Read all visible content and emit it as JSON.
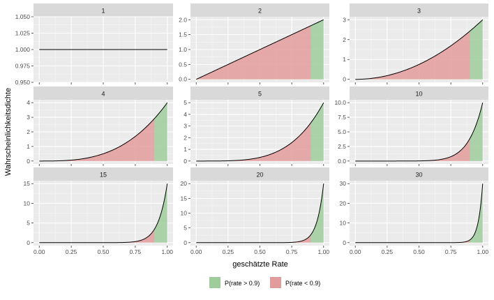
{
  "chart_data": {
    "type": "area",
    "subtype": "faceted-density",
    "layout": {
      "columns": 3,
      "rows": 3,
      "scales": "free_y"
    },
    "xlabel": "geschätzte Rate",
    "ylabel": "Wahrscheinlichkeitsdichte",
    "xlim": [
      0,
      1
    ],
    "x_ticks": [
      "0.00",
      "0.25",
      "0.50",
      "0.75",
      "1.00"
    ],
    "threshold": 0.9,
    "grid": true,
    "legend": {
      "position": "bottom",
      "entries": [
        {
          "label": "P(rate > 0.9)",
          "color": "#9fcc9b"
        },
        {
          "label": "P(rate < 0.9)",
          "color": "#e39c9c"
        }
      ]
    },
    "line_color": "#000000",
    "panel_bg": "#ebebeb",
    "strip_bg": "#d9d9d9",
    "facets": [
      {
        "label": "1",
        "n": 1,
        "ylim": [
          0.95,
          1.05
        ],
        "y_ticks": [
          0.95,
          0.975,
          1.0,
          1.025,
          1.05
        ],
        "y_tick_labels": [
          "0.950",
          "0.975",
          "1.000",
          "1.025",
          "1.050"
        ],
        "fill": false
      },
      {
        "label": "2",
        "n": 2,
        "ylim": [
          -0.1,
          2.1
        ],
        "y_ticks": [
          0,
          0.5,
          1,
          1.5,
          2
        ],
        "y_tick_labels": [
          "0.0",
          "0.5",
          "1.0",
          "1.5",
          "2.0"
        ],
        "fill": true
      },
      {
        "label": "3",
        "n": 3,
        "ylim": [
          -0.15,
          3.15
        ],
        "y_ticks": [
          0,
          1,
          2,
          3
        ],
        "y_tick_labels": [
          "0",
          "1",
          "2",
          "3"
        ],
        "fill": true
      },
      {
        "label": "4",
        "n": 4,
        "ylim": [
          -0.2,
          4.2
        ],
        "y_ticks": [
          0,
          1,
          2,
          3,
          4
        ],
        "y_tick_labels": [
          "0",
          "1",
          "2",
          "3",
          "4"
        ],
        "fill": true
      },
      {
        "label": "5",
        "n": 5,
        "ylim": [
          -0.25,
          5.25
        ],
        "y_ticks": [
          0,
          1,
          2,
          3,
          4,
          5
        ],
        "y_tick_labels": [
          "0",
          "1",
          "2",
          "3",
          "4",
          "5"
        ],
        "fill": true
      },
      {
        "label": "10",
        "n": 10,
        "ylim": [
          -0.5,
          10.5
        ],
        "y_ticks": [
          0,
          2.5,
          5,
          7.5,
          10
        ],
        "y_tick_labels": [
          "0.0",
          "2.5",
          "5.0",
          "7.5",
          "10.0"
        ],
        "fill": true
      },
      {
        "label": "15",
        "n": 15,
        "ylim": [
          -0.75,
          15.75
        ],
        "y_ticks": [
          0,
          5,
          10,
          15
        ],
        "y_tick_labels": [
          "0",
          "5",
          "10",
          "15"
        ],
        "fill": true
      },
      {
        "label": "20",
        "n": 20,
        "ylim": [
          -1,
          21
        ],
        "y_ticks": [
          0,
          5,
          10,
          15,
          20
        ],
        "y_tick_labels": [
          "0",
          "5",
          "10",
          "15",
          "20"
        ],
        "fill": true
      },
      {
        "label": "30",
        "n": 30,
        "ylim": [
          -1.5,
          31.5
        ],
        "y_ticks": [
          0,
          10,
          20,
          30
        ],
        "y_tick_labels": [
          "0",
          "10",
          "20",
          "30"
        ],
        "fill": true
      }
    ]
  }
}
